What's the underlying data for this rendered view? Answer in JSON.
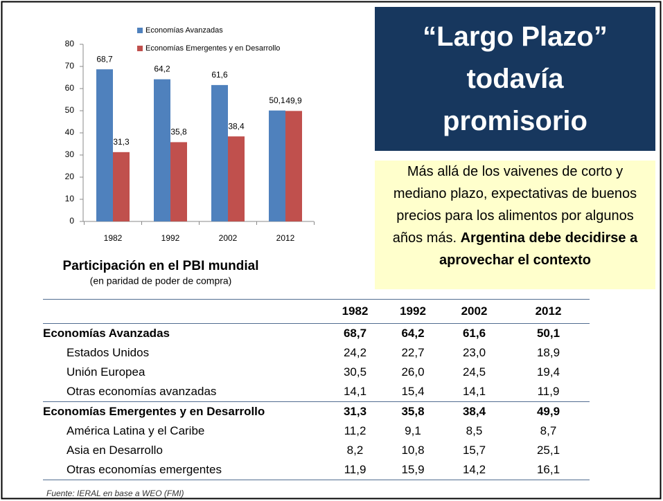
{
  "chart_data": {
    "type": "bar",
    "categories": [
      "1982",
      "1992",
      "2002",
      "2012"
    ],
    "series": [
      {
        "name": "Economías Avanzadas",
        "color": "#4F81BD",
        "values": [
          68.7,
          64.2,
          61.6,
          50.1
        ],
        "value_labels": [
          "68,7",
          "64,2",
          "61,6",
          "50,1"
        ]
      },
      {
        "name": "Economías Emergentes y en Desarrollo",
        "color": "#C0504D",
        "values": [
          31.3,
          35.8,
          38.4,
          49.9
        ],
        "value_labels": [
          "31,3",
          "35,8",
          "38,4",
          "49,9"
        ]
      }
    ],
    "ylim": [
      0,
      80
    ],
    "yticks": [
      0,
      10,
      20,
      30,
      40,
      50,
      60,
      70,
      80
    ],
    "title": "Participación en el PBI mundial",
    "subtitle": "(en paridad de poder de compra)"
  },
  "title_box": {
    "lines": [
      "“Largo Plazo”",
      "todavía",
      "promisorio"
    ]
  },
  "text_box": {
    "normal": "Más allá de los vaivenes de corto y mediano plazo, expectativas de buenos precios para los alimentos por algunos años más. ",
    "bold": "Argentina debe decidirse a aprovechar el contexto"
  },
  "table": {
    "columns": [
      "1982",
      "1992",
      "2002",
      "2012"
    ],
    "groups": [
      {
        "name": "Economías Avanzadas",
        "values": [
          "68,7",
          "64,2",
          "61,6",
          "50,1"
        ],
        "rows": [
          {
            "name": "Estados Unidos",
            "values": [
              "24,2",
              "22,7",
              "23,0",
              "18,9"
            ]
          },
          {
            "name": "Unión Europea",
            "values": [
              "30,5",
              "26,0",
              "24,5",
              "19,4"
            ]
          },
          {
            "name": "Otras economías avanzadas",
            "values": [
              "14,1",
              "15,4",
              "14,1",
              "11,9"
            ]
          }
        ]
      },
      {
        "name": "Economías Emergentes y en Desarrollo",
        "values": [
          "31,3",
          "35,8",
          "38,4",
          "49,9"
        ],
        "rows": [
          {
            "name": "América Latina y el Caribe",
            "values": [
              "11,2",
              "9,1",
              "8,5",
              "8,7"
            ]
          },
          {
            "name": "Asia en Desarrollo",
            "values": [
              "8,2",
              "10,8",
              "15,7",
              "25,1"
            ]
          },
          {
            "name": "Otras economías emergentes",
            "values": [
              "11,9",
              "15,9",
              "14,2",
              "16,1"
            ]
          }
        ]
      }
    ]
  },
  "footer": "Fuente: IERAL en base a WEO (FMI)"
}
